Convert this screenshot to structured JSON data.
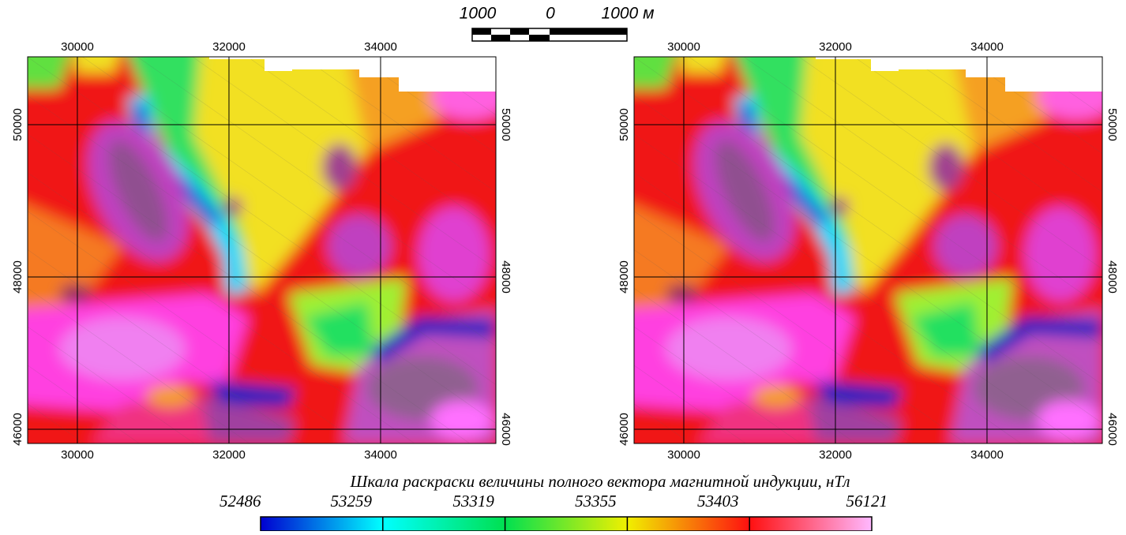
{
  "scale_bar": {
    "labels": [
      "1000",
      "0",
      "1000 м"
    ]
  },
  "maps": [
    {
      "xlim": [
        29344,
        35521
      ],
      "ylim": [
        45813,
        50891
      ],
      "xticks": [
        30000,
        32000,
        34000
      ],
      "yticks": [
        46000,
        48000,
        50000
      ]
    },
    {
      "xlim": [
        29344,
        35521
      ],
      "ylim": [
        45813,
        50891
      ],
      "xticks": [
        30000,
        32000,
        34000
      ],
      "yticks": [
        46000,
        48000,
        50000
      ]
    }
  ],
  "colorbar": {
    "title": "Шкала раскраски величины полного вектора магнитной индукции, нТл",
    "values": [
      52486,
      53259,
      53319,
      53355,
      53403,
      56121
    ],
    "colors": [
      "#0000d0",
      "#00ffff",
      "#00e050",
      "#f0f000",
      "#ff1010",
      "#ffb8ff"
    ]
  }
}
